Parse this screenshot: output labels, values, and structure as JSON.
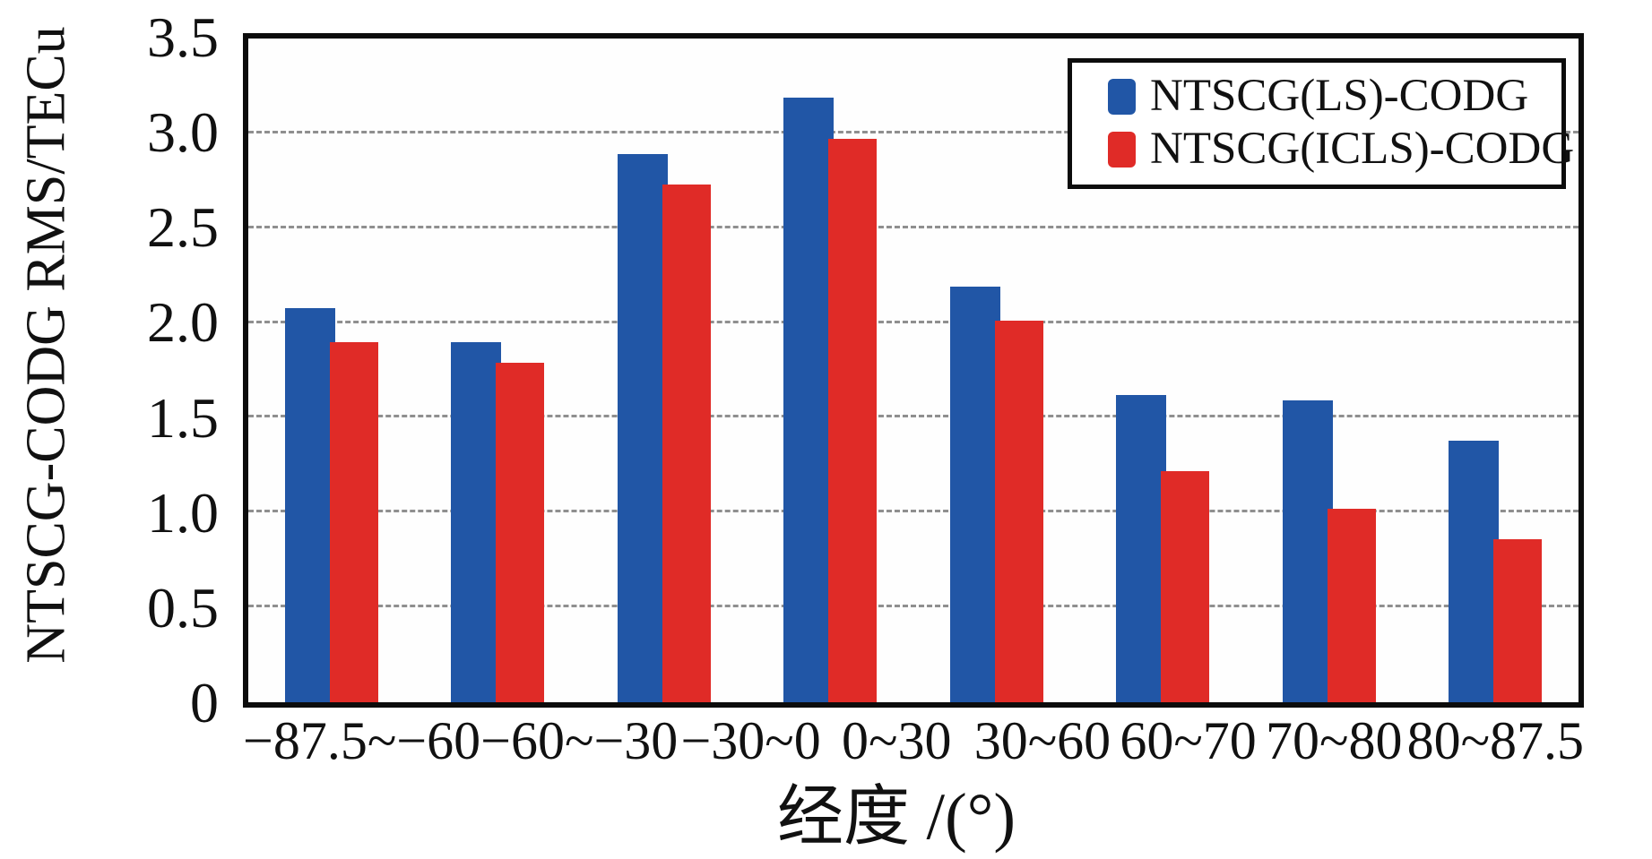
{
  "chart_data": {
    "type": "bar",
    "title": "",
    "xlabel": "经度 /(°)",
    "ylabel": "NTSCG-CODG RMS/TECu",
    "categories": [
      "−87.5~−60",
      "−60~−30",
      "−30~0",
      "0~30",
      "30~60",
      "60~70",
      "70~80",
      "80~87.5"
    ],
    "series": [
      {
        "name": "NTSCG(LS)-CODG",
        "color": "#2156a6",
        "values": [
          2.08,
          1.9,
          2.89,
          3.19,
          2.19,
          1.62,
          1.59,
          1.38
        ]
      },
      {
        "name": "NTSCG(ICLS)-CODG",
        "color": "#e02b27",
        "values": [
          1.9,
          1.79,
          2.73,
          2.97,
          2.01,
          1.22,
          1.02,
          0.86
        ]
      }
    ],
    "ylim": [
      0,
      3.5
    ],
    "y_ticks": [
      0,
      0.5,
      1.0,
      1.5,
      2.0,
      2.5,
      3.0,
      3.5
    ],
    "y_tick_labels": [
      "0",
      "0.5",
      "1.0",
      "1.5",
      "2.0",
      "2.5",
      "3.0",
      "3.5"
    ],
    "grid": "horizontal-dashed",
    "legend_position": "top-right"
  },
  "colors": {
    "axis": "#0c0c0c",
    "grid": "#7c7c7c",
    "text": "#111111",
    "background": "#ffffff"
  }
}
